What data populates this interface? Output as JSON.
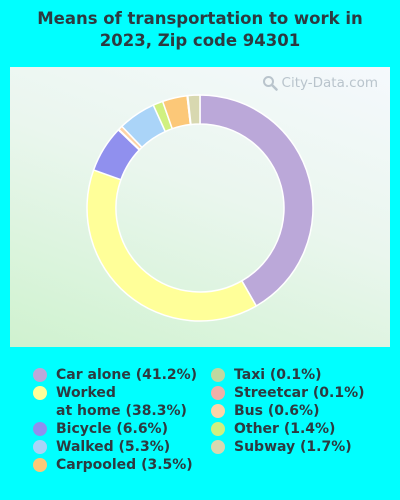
{
  "title_lines": [
    "Means of transportation to work in",
    "2023, Zip code 94301"
  ],
  "watermark": "City-Data.com",
  "chart_data": {
    "type": "pie",
    "donut": true,
    "title": "Means of transportation to work in 2023, Zip code 94301",
    "unit": "%",
    "slices": [
      {
        "label": "Car alone",
        "value": 41.2,
        "color": "#bba8d9",
        "legend": "Car alone (41.2%)"
      },
      {
        "label": "Worked at home",
        "value": 38.3,
        "color": "#ffff99",
        "legend": "Worked\nat home (38.3%)"
      },
      {
        "label": "Bicycle",
        "value": 6.6,
        "color": "#9090ee",
        "legend": "Bicycle (6.6%)"
      },
      {
        "label": "Streetcar",
        "value": 0.1,
        "color": "#f0b0a8",
        "legend": "Streetcar (0.1%)"
      },
      {
        "label": "Bus",
        "value": 0.6,
        "color": "#fdd4a8",
        "legend": "Bus (0.6%)"
      },
      {
        "label": "Walked",
        "value": 5.3,
        "color": "#aad4f8",
        "legend": "Walked (5.3%)"
      },
      {
        "label": "Other",
        "value": 1.4,
        "color": "#d0f080",
        "legend": "Other (1.4%)"
      },
      {
        "label": "Carpooled",
        "value": 3.5,
        "color": "#fcc878",
        "legend": "Carpooled (3.5%)"
      },
      {
        "label": "Taxi",
        "value": 0.1,
        "color": "#c0d8a0",
        "legend": "Taxi (0.1%)"
      },
      {
        "label": "Subway",
        "value": 1.7,
        "color": "#d8d8b0",
        "legend": "Subway (1.7%)"
      }
    ],
    "legend_columns": [
      [
        "Car alone",
        "Worked at home",
        "Bicycle",
        "Walked",
        "Carpooled"
      ],
      [
        "Taxi",
        "Streetcar",
        "Bus",
        "Other",
        "Subway"
      ]
    ],
    "legend_position": "bottom"
  }
}
